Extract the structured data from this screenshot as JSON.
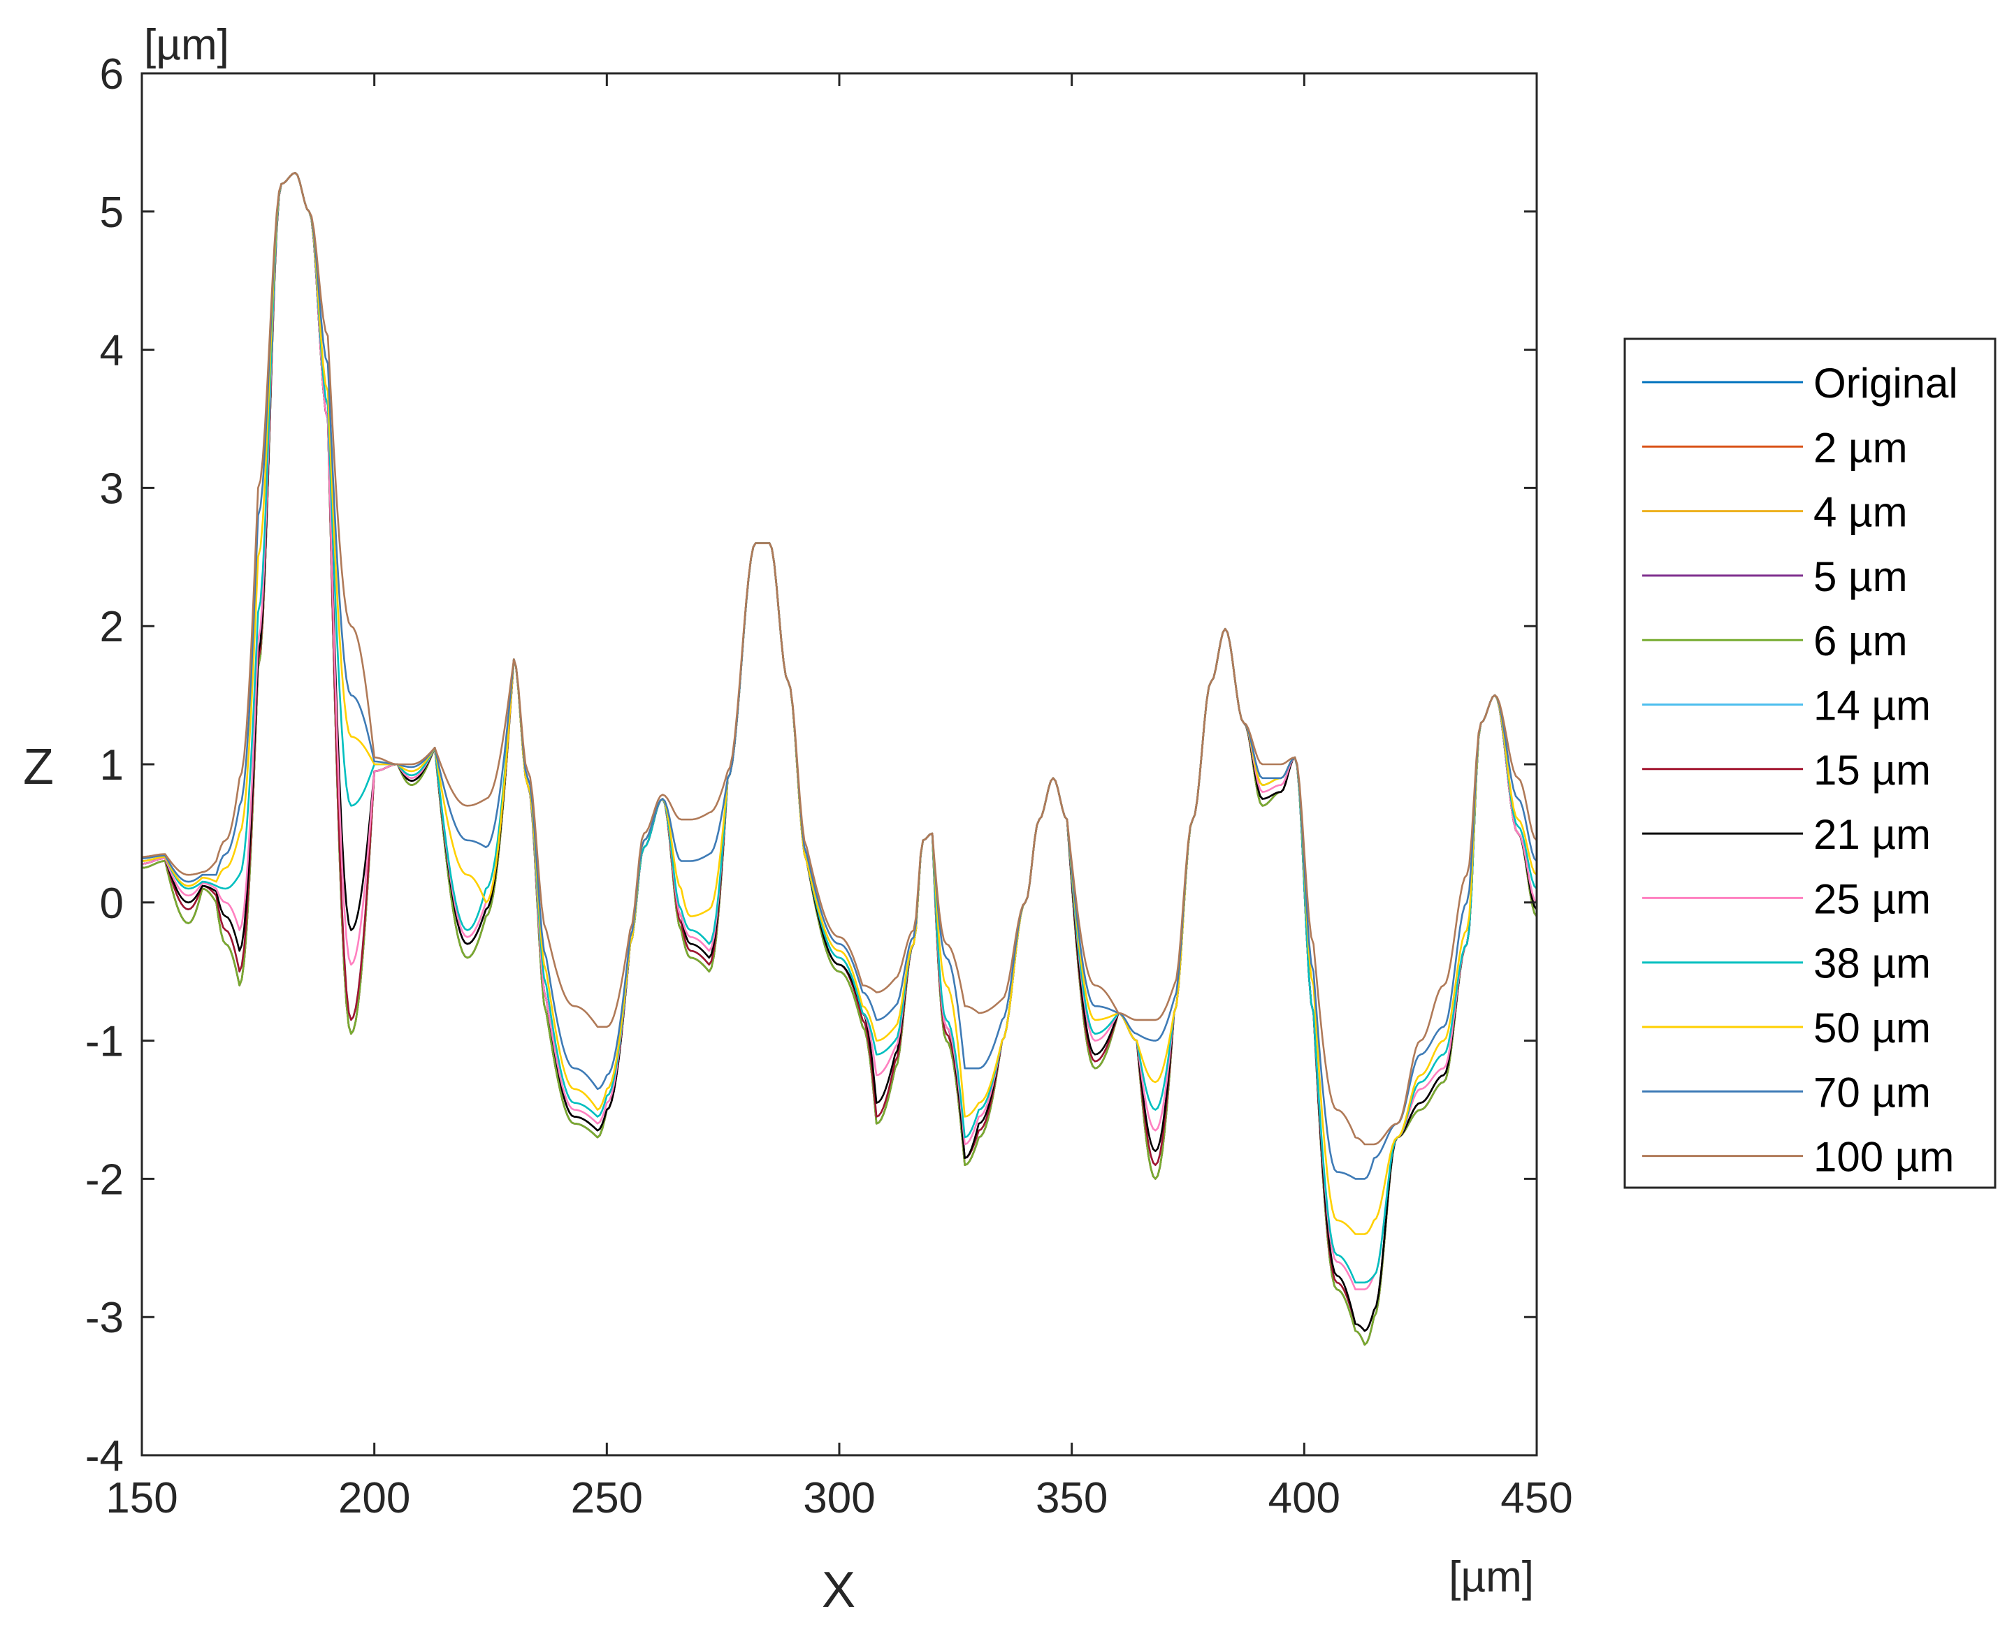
{
  "chart_data": {
    "type": "line",
    "xlabel": "X",
    "ylabel": "Z",
    "x_unit": "[µm]",
    "y_unit": "[µm]",
    "xlim": [
      150,
      450
    ],
    "ylim": [
      -4,
      6
    ],
    "xticks": [
      150,
      200,
      250,
      300,
      350,
      400,
      450
    ],
    "yticks": [
      -4,
      -3,
      -2,
      -1,
      0,
      1,
      2,
      3,
      4,
      5,
      6
    ],
    "grid": false,
    "legend_position": "right",
    "profile_x": [
      150,
      155,
      160,
      163,
      166,
      168,
      171,
      175,
      180,
      183,
      186,
      190,
      195,
      200,
      205,
      208,
      213,
      220,
      224,
      230,
      233,
      237,
      243,
      248,
      250,
      255,
      258,
      262,
      266,
      268,
      272,
      276,
      282,
      285,
      289,
      293,
      300,
      305,
      308,
      312,
      316,
      318,
      320,
      323,
      327,
      330,
      335,
      340,
      343,
      346,
      349,
      355,
      360,
      364,
      368,
      372,
      376,
      380,
      383,
      387,
      391,
      395,
      398,
      402,
      407,
      411,
      413,
      415,
      420,
      425,
      430,
      435,
      438,
      441,
      446,
      450
    ],
    "peak_flags": [
      1,
      1,
      0,
      0,
      1,
      0,
      0,
      1,
      1,
      1,
      1,
      1,
      0,
      1,
      1,
      0,
      1,
      0,
      0,
      1,
      1,
      1,
      0,
      0,
      0,
      1,
      1,
      1,
      1,
      0,
      0,
      1,
      1,
      1,
      1,
      1,
      0,
      0,
      0,
      1,
      1,
      1,
      1,
      0,
      0,
      0,
      1,
      1,
      1,
      1,
      1,
      0,
      1,
      1,
      0,
      1,
      1,
      1,
      1,
      1,
      1,
      1,
      1,
      1,
      0,
      0,
      0,
      1,
      1,
      1,
      1,
      1,
      1,
      1,
      1,
      1
    ],
    "series": [
      {
        "name": "Original",
        "color": "#0072bd",
        "z": [
          0.25,
          0.3,
          -0.15,
          0.1,
          0.0,
          -0.3,
          -0.6,
          1.7,
          5.2,
          5.28,
          5.0,
          3.5,
          -0.95,
          0.95,
          1.0,
          0.85,
          1.12,
          -0.4,
          -0.1,
          1.76,
          0.85,
          -0.8,
          -1.6,
          -1.7,
          -1.5,
          -0.3,
          0.4,
          0.75,
          -0.2,
          -0.4,
          -0.5,
          0.9,
          2.6,
          2.6,
          1.6,
          0.3,
          -0.5,
          -0.9,
          -1.6,
          -1.2,
          -0.3,
          0.45,
          0.5,
          -1.0,
          -1.9,
          -1.7,
          -1.0,
          0.0,
          0.6,
          0.9,
          0.6,
          -1.2,
          -0.8,
          -1.0,
          -2.0,
          -0.8,
          0.6,
          1.6,
          1.98,
          1.3,
          0.7,
          0.8,
          1.05,
          -0.8,
          -2.8,
          -3.1,
          -3.2,
          -3.0,
          -1.7,
          -1.5,
          -1.3,
          -0.3,
          1.3,
          1.5,
          0.5,
          -0.1
        ]
      },
      {
        "name": "2 µm",
        "color": "#d95319",
        "z": [
          0.25,
          0.3,
          -0.15,
          0.1,
          0.0,
          -0.3,
          -0.6,
          1.7,
          5.2,
          5.28,
          5.0,
          3.5,
          -0.95,
          0.95,
          1.0,
          0.85,
          1.12,
          -0.4,
          -0.1,
          1.76,
          0.85,
          -0.8,
          -1.6,
          -1.7,
          -1.5,
          -0.3,
          0.4,
          0.75,
          -0.2,
          -0.4,
          -0.5,
          0.9,
          2.6,
          2.6,
          1.6,
          0.3,
          -0.5,
          -0.9,
          -1.6,
          -1.2,
          -0.3,
          0.45,
          0.5,
          -1.0,
          -1.9,
          -1.7,
          -1.0,
          0.0,
          0.6,
          0.9,
          0.6,
          -1.2,
          -0.8,
          -1.0,
          -2.0,
          -0.8,
          0.6,
          1.6,
          1.98,
          1.3,
          0.7,
          0.8,
          1.05,
          -0.8,
          -2.8,
          -3.1,
          -3.2,
          -3.0,
          -1.7,
          -1.5,
          -1.3,
          -0.3,
          1.3,
          1.5,
          0.5,
          -0.1
        ]
      },
      {
        "name": "4 µm",
        "color": "#edb120",
        "z": [
          0.25,
          0.3,
          -0.15,
          0.1,
          0.0,
          -0.3,
          -0.6,
          1.7,
          5.2,
          5.28,
          5.0,
          3.5,
          -0.95,
          0.95,
          1.0,
          0.85,
          1.12,
          -0.4,
          -0.1,
          1.76,
          0.85,
          -0.8,
          -1.6,
          -1.7,
          -1.5,
          -0.3,
          0.4,
          0.75,
          -0.2,
          -0.4,
          -0.5,
          0.9,
          2.6,
          2.6,
          1.6,
          0.3,
          -0.5,
          -0.9,
          -1.6,
          -1.2,
          -0.3,
          0.45,
          0.5,
          -1.0,
          -1.9,
          -1.7,
          -1.0,
          0.0,
          0.6,
          0.9,
          0.6,
          -1.2,
          -0.8,
          -1.0,
          -2.0,
          -0.8,
          0.6,
          1.6,
          1.98,
          1.3,
          0.7,
          0.8,
          1.05,
          -0.8,
          -2.8,
          -3.1,
          -3.2,
          -3.0,
          -1.7,
          -1.5,
          -1.3,
          -0.3,
          1.3,
          1.5,
          0.5,
          -0.1
        ]
      },
      {
        "name": "5 µm",
        "color": "#7e2f8e",
        "z": [
          0.25,
          0.3,
          -0.15,
          0.1,
          0.0,
          -0.3,
          -0.6,
          1.7,
          5.2,
          5.28,
          5.0,
          3.5,
          -0.95,
          0.95,
          1.0,
          0.85,
          1.12,
          -0.4,
          -0.1,
          1.76,
          0.85,
          -0.8,
          -1.6,
          -1.7,
          -1.5,
          -0.3,
          0.4,
          0.75,
          -0.2,
          -0.4,
          -0.5,
          0.9,
          2.6,
          2.6,
          1.6,
          0.3,
          -0.5,
          -0.9,
          -1.6,
          -1.2,
          -0.3,
          0.45,
          0.5,
          -1.0,
          -1.9,
          -1.7,
          -1.0,
          0.0,
          0.6,
          0.9,
          0.6,
          -1.2,
          -0.8,
          -1.0,
          -2.0,
          -0.8,
          0.6,
          1.6,
          1.98,
          1.3,
          0.7,
          0.8,
          1.05,
          -0.8,
          -2.8,
          -3.1,
          -3.2,
          -3.0,
          -1.7,
          -1.5,
          -1.3,
          -0.3,
          1.3,
          1.5,
          0.5,
          -0.1
        ]
      },
      {
        "name": "6 µm",
        "color": "#77ac30",
        "z": [
          0.25,
          0.3,
          -0.15,
          0.1,
          0.0,
          -0.3,
          -0.6,
          1.7,
          5.2,
          5.28,
          5.0,
          3.5,
          -0.95,
          0.95,
          1.0,
          0.85,
          1.12,
          -0.4,
          -0.1,
          1.76,
          0.85,
          -0.8,
          -1.6,
          -1.7,
          -1.5,
          -0.3,
          0.4,
          0.75,
          -0.2,
          -0.4,
          -0.5,
          0.9,
          2.6,
          2.6,
          1.6,
          0.3,
          -0.5,
          -0.9,
          -1.6,
          -1.2,
          -0.3,
          0.45,
          0.5,
          -1.0,
          -1.9,
          -1.7,
          -1.0,
          0.0,
          0.6,
          0.9,
          0.6,
          -1.2,
          -0.8,
          -1.0,
          -2.0,
          -0.8,
          0.6,
          1.6,
          1.98,
          1.3,
          0.7,
          0.8,
          1.05,
          -0.8,
          -2.8,
          -3.1,
          -3.2,
          -3.0,
          -1.7,
          -1.5,
          -1.3,
          -0.3,
          1.3,
          1.5,
          0.5,
          -0.1
        ]
      },
      {
        "name": "14 µm",
        "color": "#4dbeee",
        "z": [
          0.28,
          0.32,
          -0.05,
          0.12,
          0.05,
          -0.2,
          -0.5,
          1.75,
          5.2,
          5.28,
          5.0,
          3.5,
          -0.85,
          0.95,
          1.0,
          0.88,
          1.12,
          -0.3,
          -0.05,
          1.76,
          0.85,
          -0.7,
          -1.55,
          -1.65,
          -1.5,
          -0.3,
          0.4,
          0.75,
          -0.15,
          -0.35,
          -0.45,
          0.9,
          2.6,
          2.6,
          1.6,
          0.3,
          -0.45,
          -0.85,
          -1.55,
          -1.15,
          -0.3,
          0.45,
          0.5,
          -0.95,
          -1.85,
          -1.65,
          -1.0,
          0.0,
          0.6,
          0.9,
          0.6,
          -1.15,
          -0.8,
          -1.0,
          -1.9,
          -0.8,
          0.6,
          1.6,
          1.98,
          1.3,
          0.75,
          0.8,
          1.05,
          -0.8,
          -2.75,
          -3.05,
          -3.1,
          -2.95,
          -1.7,
          -1.45,
          -1.25,
          -0.3,
          1.3,
          1.5,
          0.5,
          -0.05
        ]
      },
      {
        "name": "15 µm",
        "color": "#a2142f",
        "z": [
          0.28,
          0.32,
          -0.05,
          0.12,
          0.05,
          -0.2,
          -0.5,
          1.75,
          5.2,
          5.28,
          5.0,
          3.5,
          -0.85,
          0.95,
          1.0,
          0.88,
          1.12,
          -0.3,
          -0.05,
          1.76,
          0.85,
          -0.7,
          -1.55,
          -1.65,
          -1.5,
          -0.3,
          0.4,
          0.75,
          -0.15,
          -0.35,
          -0.45,
          0.9,
          2.6,
          2.6,
          1.6,
          0.3,
          -0.45,
          -0.85,
          -1.55,
          -1.15,
          -0.3,
          0.45,
          0.5,
          -0.95,
          -1.85,
          -1.65,
          -1.0,
          0.0,
          0.6,
          0.9,
          0.6,
          -1.15,
          -0.8,
          -1.0,
          -1.9,
          -0.8,
          0.6,
          1.6,
          1.98,
          1.3,
          0.75,
          0.8,
          1.05,
          -0.8,
          -2.75,
          -3.05,
          -3.1,
          -2.95,
          -1.7,
          -1.45,
          -1.25,
          -0.3,
          1.3,
          1.5,
          0.5,
          -0.05
        ]
      },
      {
        "name": "21 µm",
        "color": "#000000",
        "z": [
          0.28,
          0.32,
          0.0,
          0.12,
          0.08,
          -0.1,
          -0.35,
          1.8,
          5.2,
          5.28,
          5.0,
          3.5,
          -0.2,
          0.95,
          1.0,
          0.88,
          1.12,
          -0.3,
          -0.05,
          1.76,
          0.85,
          -0.7,
          -1.55,
          -1.65,
          -1.5,
          -0.3,
          0.4,
          0.75,
          -0.1,
          -0.3,
          -0.4,
          0.9,
          2.6,
          2.6,
          1.6,
          0.3,
          -0.45,
          -0.8,
          -1.45,
          -1.1,
          -0.3,
          0.45,
          0.5,
          -0.9,
          -1.85,
          -1.6,
          -1.0,
          0.0,
          0.6,
          0.9,
          0.6,
          -1.1,
          -0.8,
          -1.0,
          -1.8,
          -0.8,
          0.6,
          1.6,
          1.98,
          1.3,
          0.75,
          0.8,
          1.05,
          -0.8,
          -2.7,
          -3.05,
          -3.1,
          -2.95,
          -1.7,
          -1.45,
          -1.25,
          -0.3,
          1.3,
          1.5,
          0.5,
          -0.05
        ]
      },
      {
        "name": "25 µm",
        "color": "#ff80c0",
        "z": [
          0.28,
          0.32,
          0.05,
          0.14,
          0.1,
          0.0,
          -0.2,
          1.9,
          5.2,
          5.28,
          5.0,
          3.5,
          -0.45,
          0.95,
          1.0,
          0.9,
          1.12,
          -0.25,
          0.0,
          1.76,
          0.85,
          -0.7,
          -1.5,
          -1.6,
          -1.45,
          -0.3,
          0.4,
          0.75,
          -0.1,
          -0.25,
          -0.35,
          0.9,
          2.6,
          2.6,
          1.6,
          0.3,
          -0.4,
          -0.8,
          -1.25,
          -1.05,
          -0.3,
          0.45,
          0.5,
          -0.9,
          -1.75,
          -1.55,
          -1.0,
          0.0,
          0.6,
          0.9,
          0.6,
          -1.0,
          -0.8,
          -1.0,
          -1.65,
          -0.8,
          0.6,
          1.6,
          1.98,
          1.3,
          0.8,
          0.85,
          1.05,
          -0.8,
          -2.6,
          -2.8,
          -2.8,
          -2.7,
          -1.7,
          -1.35,
          -1.2,
          -0.3,
          1.3,
          1.5,
          0.5,
          0.0
        ]
      },
      {
        "name": "38 µm",
        "color": "#00bfbf",
        "z": [
          0.3,
          0.33,
          0.1,
          0.15,
          0.12,
          0.1,
          0.2,
          2.1,
          5.2,
          5.28,
          5.0,
          3.6,
          0.7,
          1.0,
          1.0,
          0.92,
          1.12,
          -0.2,
          0.1,
          1.76,
          0.85,
          -0.6,
          -1.45,
          -1.55,
          -1.4,
          -0.3,
          0.4,
          0.75,
          -0.05,
          -0.2,
          -0.3,
          0.9,
          2.6,
          2.6,
          1.6,
          0.3,
          -0.4,
          -0.8,
          -1.1,
          -1.0,
          -0.3,
          0.45,
          0.5,
          -0.85,
          -1.7,
          -1.5,
          -1.0,
          0.0,
          0.6,
          0.9,
          0.6,
          -0.95,
          -0.8,
          -1.0,
          -1.5,
          -0.8,
          0.6,
          1.6,
          1.98,
          1.3,
          0.85,
          0.9,
          1.05,
          -0.8,
          -2.55,
          -2.75,
          -2.75,
          -2.7,
          -1.7,
          -1.3,
          -1.1,
          -0.3,
          1.3,
          1.5,
          0.55,
          0.1
        ]
      },
      {
        "name": "50 µm",
        "color": "#ffd000",
        "z": [
          0.3,
          0.33,
          0.12,
          0.18,
          0.15,
          0.25,
          0.5,
          2.5,
          5.2,
          5.28,
          5.0,
          3.7,
          1.2,
          1.0,
          1.0,
          0.95,
          1.12,
          0.2,
          0.0,
          1.76,
          0.85,
          -0.5,
          -1.35,
          -1.5,
          -1.35,
          -0.3,
          0.45,
          0.75,
          0.1,
          -0.1,
          -0.05,
          0.9,
          2.6,
          2.6,
          1.6,
          0.3,
          -0.35,
          -0.75,
          -1.0,
          -0.9,
          -0.3,
          0.45,
          0.5,
          -0.6,
          -1.55,
          -1.45,
          -1.0,
          0.0,
          0.6,
          0.9,
          0.6,
          -0.85,
          -0.8,
          -1.0,
          -1.3,
          -0.8,
          0.6,
          1.6,
          1.98,
          1.3,
          0.85,
          0.9,
          1.05,
          -0.6,
          -2.3,
          -2.4,
          -2.4,
          -2.3,
          -1.7,
          -1.25,
          -1.0,
          -0.2,
          1.3,
          1.5,
          0.6,
          0.2
        ]
      },
      {
        "name": "70 µm",
        "color": "#3e7bb6",
        "z": [
          0.32,
          0.34,
          0.15,
          0.2,
          0.2,
          0.35,
          0.7,
          2.8,
          5.2,
          5.28,
          5.0,
          3.9,
          1.5,
          1.02,
          1.0,
          0.98,
          1.12,
          0.45,
          0.4,
          1.76,
          0.9,
          -0.4,
          -1.2,
          -1.35,
          -1.25,
          -0.25,
          0.45,
          0.75,
          0.3,
          0.3,
          0.35,
          0.9,
          2.6,
          2.6,
          1.6,
          0.35,
          -0.3,
          -0.65,
          -0.85,
          -0.75,
          -0.25,
          0.45,
          0.5,
          -0.4,
          -1.2,
          -1.2,
          -0.85,
          0.0,
          0.6,
          0.9,
          0.6,
          -0.75,
          -0.8,
          -0.95,
          -1.0,
          -0.7,
          0.6,
          1.6,
          1.98,
          1.3,
          0.9,
          0.9,
          1.05,
          -0.5,
          -1.95,
          -2.0,
          -2.0,
          -1.85,
          -1.6,
          -1.1,
          -0.9,
          0.0,
          1.3,
          1.5,
          0.75,
          0.3
        ]
      },
      {
        "name": "100 µm",
        "color": "#b07a58",
        "z": [
          0.33,
          0.35,
          0.2,
          0.22,
          0.3,
          0.45,
          0.9,
          3.0,
          5.2,
          5.28,
          5.0,
          4.1,
          2.0,
          1.05,
          1.0,
          1.0,
          1.12,
          0.7,
          0.75,
          1.76,
          0.95,
          -0.2,
          -0.75,
          -0.9,
          -0.9,
          -0.2,
          0.5,
          0.78,
          0.6,
          0.6,
          0.65,
          0.95,
          2.6,
          2.6,
          1.6,
          0.4,
          -0.25,
          -0.6,
          -0.65,
          -0.55,
          -0.2,
          0.45,
          0.5,
          -0.3,
          -0.75,
          -0.8,
          -0.7,
          0.0,
          0.6,
          0.9,
          0.6,
          -0.6,
          -0.8,
          -0.85,
          -0.85,
          -0.6,
          0.6,
          1.6,
          1.98,
          1.3,
          1.0,
          1.0,
          1.05,
          -0.3,
          -1.5,
          -1.7,
          -1.75,
          -1.75,
          -1.6,
          -1.0,
          -0.6,
          0.2,
          1.3,
          1.5,
          0.9,
          0.45
        ]
      }
    ]
  }
}
